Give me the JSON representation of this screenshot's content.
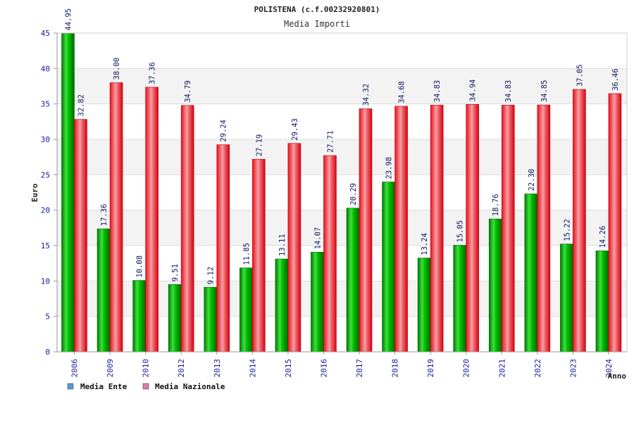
{
  "chart_data": {
    "type": "bar",
    "title": "POLISTENA (c.f.00232920801)",
    "subtitle": "Media Importi",
    "xlabel": "Anno",
    "ylabel": "Euro",
    "ylim": [
      0,
      45
    ],
    "yticks": [
      0,
      5,
      10,
      15,
      20,
      25,
      30,
      35,
      40,
      45
    ],
    "grid": true,
    "legend_position": "bottom-left",
    "categories": [
      "2006",
      "2009",
      "2010",
      "2012",
      "2013",
      "2014",
      "2015",
      "2016",
      "2017",
      "2018",
      "2019",
      "2020",
      "2021",
      "2022",
      "2023",
      "2024"
    ],
    "series": [
      {
        "name": "Media Ente",
        "color": "#00b000",
        "legend_color": "#5b9bd5",
        "values": [
          44.95,
          17.36,
          10.08,
          9.51,
          9.12,
          11.85,
          13.11,
          14.07,
          20.29,
          23.98,
          13.24,
          15.05,
          18.76,
          22.3,
          15.22,
          14.26
        ],
        "labels": [
          "44.95",
          "17.36",
          "10.08",
          "9.51",
          "9.12",
          "11.85",
          "13.11",
          "14.07",
          "20.29",
          "23.98",
          "13.24",
          "15.05",
          "18.76",
          "22.30",
          "15.22",
          "14.26"
        ]
      },
      {
        "name": "Media Nazionale",
        "color": "#e8202a",
        "legend_color": "#e078a8",
        "values": [
          32.82,
          38.0,
          37.36,
          34.79,
          29.24,
          27.19,
          29.43,
          27.71,
          34.32,
          34.68,
          34.83,
          34.94,
          34.83,
          34.85,
          37.05,
          36.46
        ],
        "labels": [
          "32.82",
          "38.00",
          "37.36",
          "34.79",
          "29.24",
          "27.19",
          "29.43",
          "27.71",
          "34.32",
          "34.68",
          "34.83",
          "34.94",
          "34.83",
          "34.85",
          "37.05",
          "36.46"
        ]
      }
    ]
  }
}
